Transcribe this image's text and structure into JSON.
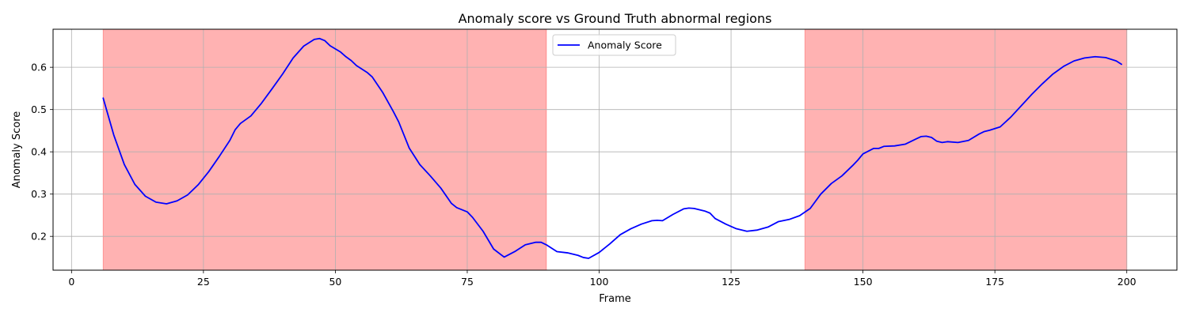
{
  "chart_data": {
    "type": "line",
    "title": "Anomaly score vs Ground Truth abnormal regions",
    "xlabel": "Frame",
    "ylabel": "Anomaly Score",
    "xlim": [
      -3.5,
      209.5
    ],
    "ylim": [
      0.12,
      0.69
    ],
    "xticks": [
      0,
      25,
      50,
      75,
      100,
      125,
      150,
      175,
      200
    ],
    "yticks": [
      0.2,
      0.3,
      0.4,
      0.5,
      0.6
    ],
    "grid": true,
    "legend_placement": "top-center",
    "line_color": "#0000ff",
    "region_color": "#ff0000",
    "abnormal_regions": [
      [
        6,
        90
      ],
      [
        139,
        200
      ]
    ],
    "series": [
      {
        "name": "Anomaly Score",
        "x": [
          6,
          8,
          10,
          12,
          14,
          16,
          18,
          20,
          22,
          24,
          26,
          28,
          30,
          31,
          32,
          34,
          36,
          38,
          40,
          42,
          44,
          46,
          47,
          48,
          49,
          51,
          52,
          53,
          54,
          56,
          57,
          59,
          61,
          62,
          64,
          66,
          68,
          70,
          72,
          73,
          75,
          76,
          78,
          80,
          82,
          84,
          86,
          88,
          89,
          90,
          92,
          94,
          96,
          97,
          98,
          100,
          102,
          104,
          106,
          108,
          110,
          111,
          112,
          114,
          116,
          117,
          118,
          120,
          121,
          122,
          124,
          126,
          128,
          130,
          132,
          134,
          136,
          138,
          140,
          142,
          144,
          146,
          148,
          149,
          150,
          152,
          153,
          154,
          156,
          158,
          160,
          161,
          162,
          163,
          164,
          165,
          166,
          168,
          170,
          172,
          173,
          174,
          176,
          178,
          180,
          182,
          184,
          186,
          188,
          190,
          192,
          194,
          196,
          198,
          199
        ],
        "values": [
          0.527,
          0.44,
          0.37,
          0.323,
          0.295,
          0.281,
          0.277,
          0.284,
          0.298,
          0.322,
          0.353,
          0.389,
          0.427,
          0.452,
          0.467,
          0.485,
          0.515,
          0.549,
          0.584,
          0.622,
          0.65,
          0.666,
          0.668,
          0.663,
          0.651,
          0.636,
          0.625,
          0.616,
          0.604,
          0.588,
          0.577,
          0.54,
          0.495,
          0.471,
          0.409,
          0.37,
          0.343,
          0.314,
          0.278,
          0.268,
          0.258,
          0.245,
          0.212,
          0.17,
          0.151,
          0.164,
          0.18,
          0.186,
          0.186,
          0.18,
          0.164,
          0.161,
          0.155,
          0.15,
          0.148,
          0.162,
          0.182,
          0.204,
          0.218,
          0.229,
          0.237,
          0.238,
          0.237,
          0.252,
          0.265,
          0.267,
          0.266,
          0.26,
          0.255,
          0.242,
          0.229,
          0.218,
          0.212,
          0.215,
          0.222,
          0.235,
          0.24,
          0.249,
          0.266,
          0.3,
          0.325,
          0.343,
          0.367,
          0.38,
          0.395,
          0.408,
          0.408,
          0.413,
          0.414,
          0.418,
          0.43,
          0.436,
          0.437,
          0.434,
          0.425,
          0.422,
          0.424,
          0.422,
          0.427,
          0.442,
          0.448,
          0.451,
          0.459,
          0.482,
          0.509,
          0.536,
          0.561,
          0.584,
          0.602,
          0.615,
          0.622,
          0.625,
          0.623,
          0.615,
          0.607
        ]
      }
    ]
  }
}
